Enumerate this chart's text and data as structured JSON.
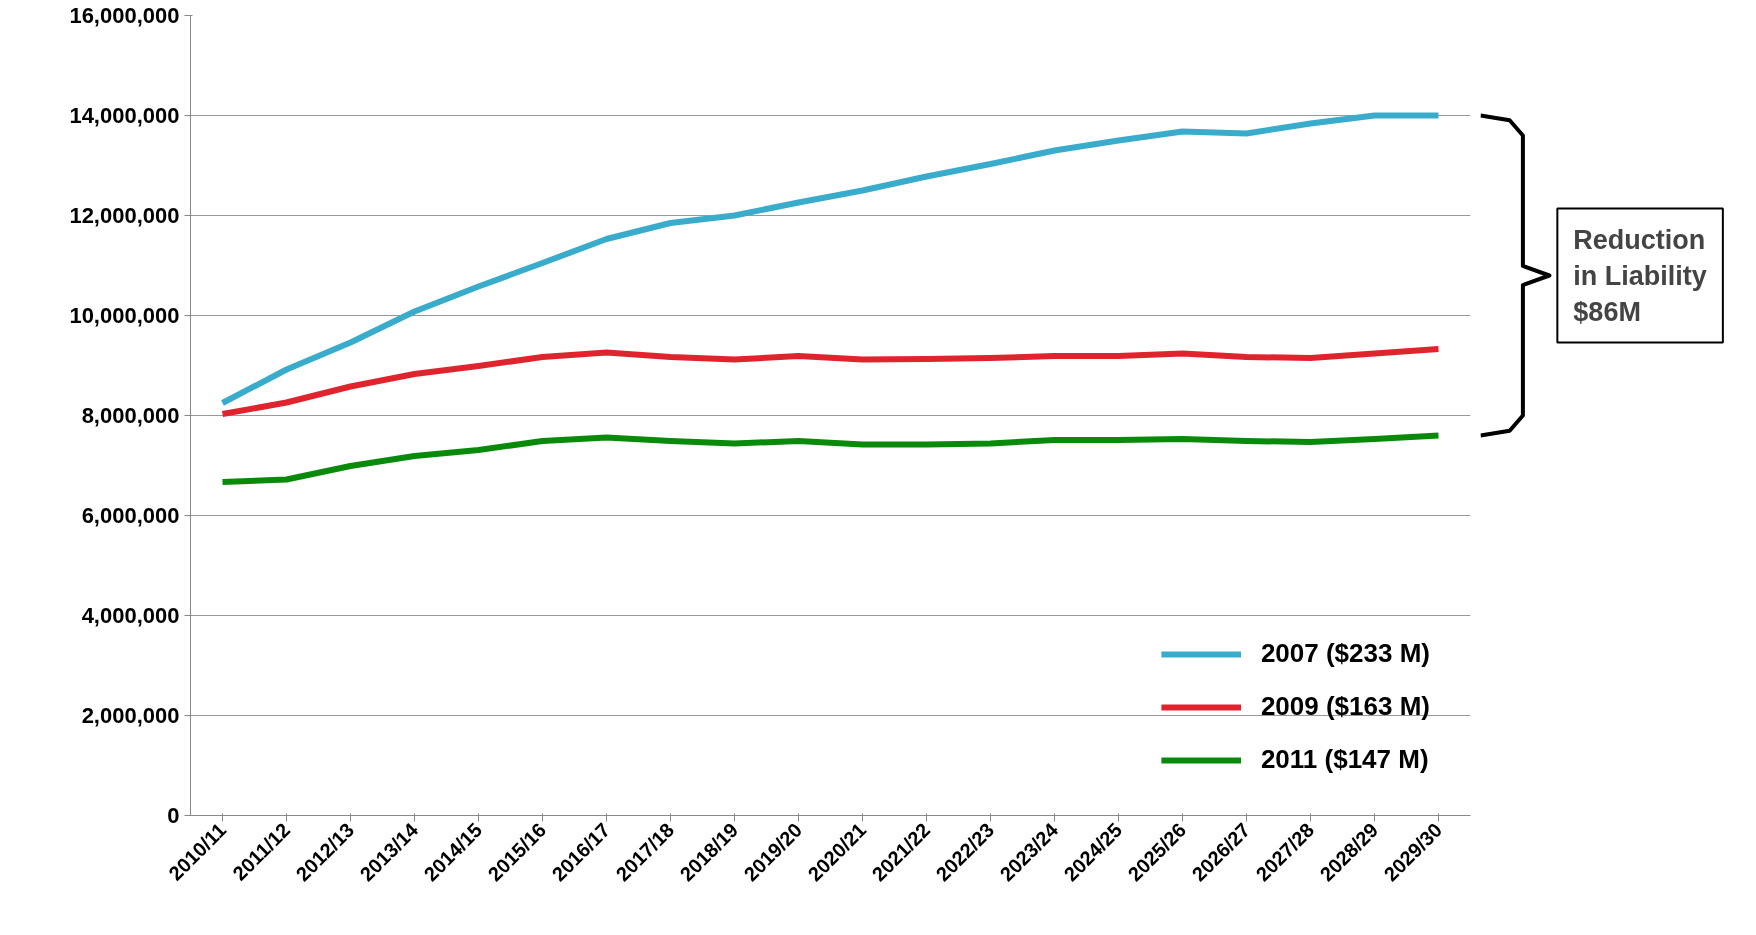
{
  "chart_data": {
    "type": "line",
    "categories": [
      "2010/11",
      "2011/12",
      "2012/13",
      "2013/14",
      "2014/15",
      "2015/16",
      "2016/17",
      "2017/18",
      "2018/19",
      "2019/20",
      "2020/21",
      "2021/22",
      "2022/23",
      "2023/24",
      "2024/25",
      "2025/26",
      "2026/27",
      "2027/28",
      "2028/29",
      "2029/30"
    ],
    "series": [
      {
        "name": "2007 ($233 M)",
        "color": "#3aaccb",
        "values": [
          8250000.0,
          8920000.0,
          9460000.0,
          10080000.0,
          10580000.0,
          11050000.0,
          11530000.0,
          11850000.0,
          12000000.0,
          12260000.0,
          12500000.0,
          12780000.0,
          13030000.0,
          13300000.0,
          13500000.0,
          13680000.0,
          13640000.0,
          13840000.0,
          14000000.0,
          14000000.0
        ]
      },
      {
        "name": "2009 ($163 M)",
        "color": "#e0242e",
        "values": [
          8030000.0,
          8260000.0,
          8580000.0,
          8830000.0,
          8990000.0,
          9170000.0,
          9260000.0,
          9170000.0,
          9120000.0,
          9190000.0,
          9120000.0,
          9130000.0,
          9150000.0,
          9190000.0,
          9190000.0,
          9240000.0,
          9170000.0,
          9150000.0,
          9240000.0,
          9330000.0
        ]
      },
      {
        "name": "2011 ($147 M)",
        "color": "#0a8a0a",
        "values": [
          6670000.0,
          6720000.0,
          6990000.0,
          7190000.0,
          7310000.0,
          7490000.0,
          7560000.0,
          7490000.0,
          7440000.0,
          7490000.0,
          7420000.0,
          7420000.0,
          7440000.0,
          7510000.0,
          7510000.0,
          7530000.0,
          7490000.0,
          7470000.0,
          7530000.0,
          7600000.0
        ]
      }
    ],
    "ylim": [
      0,
      16000000
    ],
    "yticks": [
      {
        "value": 0,
        "label": "0"
      },
      {
        "value": 2000000,
        "label": "2,000,000"
      },
      {
        "value": 4000000,
        "label": "4,000,000"
      },
      {
        "value": 6000000,
        "label": "6,000,000"
      },
      {
        "value": 8000000,
        "label": "8,000,000"
      },
      {
        "value": 10000000,
        "label": "10,000,000"
      },
      {
        "value": 12000000,
        "label": "12,000,000"
      },
      {
        "value": 14000000,
        "label": "14,000,000"
      },
      {
        "value": 16000000,
        "label": "16,000,000"
      }
    ],
    "grid": "y",
    "legend": "bottom right",
    "marker": "none",
    "line_style": "solid",
    "annotations": [
      "Reduction\nin Liability\n$86M"
    ]
  }
}
